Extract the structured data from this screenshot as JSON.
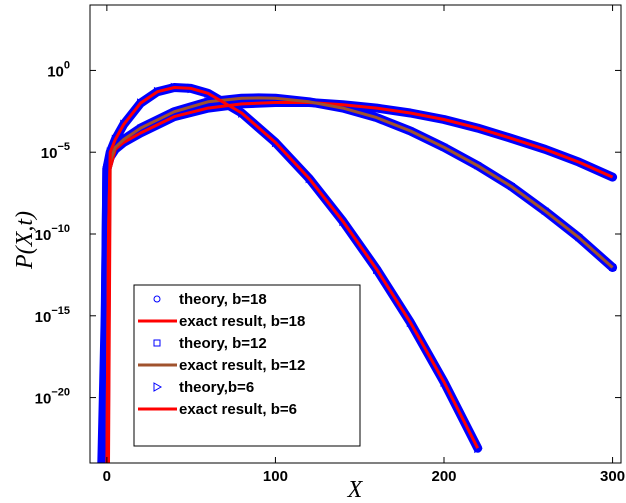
{
  "chart_data": {
    "type": "line",
    "title": "",
    "xlabel": "X",
    "ylabel": "P(X,t)",
    "y_scale": "log",
    "xlim": [
      -10,
      305
    ],
    "ylim": [
      1e-24,
      10000.0
    ],
    "x_ticks": [
      {
        "value": 0,
        "label": "0"
      },
      {
        "value": 100,
        "label": "100"
      },
      {
        "value": 200,
        "label": "200"
      },
      {
        "value": 300,
        "label": "300"
      }
    ],
    "y_ticks": [
      {
        "value": 1,
        "base": "10",
        "exp": "0"
      },
      {
        "value": 1e-05,
        "base": "10",
        "exp": "−5"
      },
      {
        "value": 1e-10,
        "base": "10",
        "exp": "−10"
      },
      {
        "value": 1e-15,
        "base": "10",
        "exp": "−15"
      },
      {
        "value": 1e-20,
        "base": "10",
        "exp": "−20"
      }
    ],
    "grid": false,
    "legend_position": "bottom-left",
    "series": [
      {
        "name": "theory, b=18",
        "kind": "marker",
        "marker": "circle",
        "color": "#0000ff",
        "x": [
          -1,
          0,
          2,
          5,
          10,
          20,
          40,
          60,
          80,
          100,
          120,
          140,
          160,
          180,
          200,
          220,
          240,
          260,
          280,
          300
        ],
        "y": [
          1e-24,
          1e-06,
          5e-06,
          1.5e-05,
          4e-05,
          0.00015,
          0.0015,
          0.005,
          0.009,
          0.011,
          0.011,
          0.008,
          0.005,
          0.0025,
          0.001,
          0.0003,
          7e-05,
          1.5e-05,
          2.5e-06,
          3e-07
        ]
      },
      {
        "name": "exact result, b=18",
        "kind": "line",
        "color": "#ff0000",
        "x": [
          1,
          2,
          5,
          10,
          20,
          40,
          60,
          80,
          100,
          120,
          140,
          160,
          180,
          200,
          220,
          240,
          260,
          280,
          300
        ],
        "y": [
          1e-24,
          1e-06,
          1.5e-05,
          4e-05,
          0.00015,
          0.0015,
          0.005,
          0.009,
          0.011,
          0.011,
          0.008,
          0.005,
          0.0025,
          0.001,
          0.0003,
          7e-05,
          1.5e-05,
          2.5e-06,
          3e-07
        ]
      },
      {
        "name": "theory, b=12",
        "kind": "marker",
        "marker": "square",
        "color": "#0000ff",
        "x": [
          -2,
          -1,
          0,
          2,
          5,
          10,
          20,
          40,
          60,
          80,
          90,
          100,
          120,
          140,
          160,
          180,
          200,
          220,
          240,
          260,
          280,
          300
        ],
        "y": [
          1e-24,
          1e-16,
          1e-06,
          5e-06,
          2e-05,
          6e-05,
          0.0003,
          0.003,
          0.012,
          0.02,
          0.021,
          0.02,
          0.012,
          0.005,
          0.0013,
          0.0002,
          2e-05,
          1.5e-06,
          8e-08,
          2.5e-09,
          6e-11,
          9e-13
        ]
      },
      {
        "name": "exact result, b=12",
        "kind": "line",
        "color": "#a0522d",
        "x": [
          0,
          1,
          2,
          5,
          10,
          20,
          40,
          60,
          80,
          90,
          100,
          120,
          140,
          160,
          180,
          200,
          220,
          240,
          260,
          280,
          300
        ],
        "y": [
          1e-24,
          1e-10,
          3e-06,
          2e-05,
          6e-05,
          0.0003,
          0.003,
          0.012,
          0.02,
          0.021,
          0.02,
          0.012,
          0.005,
          0.0013,
          0.0002,
          2e-05,
          1.5e-06,
          8e-08,
          2.5e-09,
          6e-11,
          9e-13
        ]
      },
      {
        "name": "theory,b=6",
        "kind": "marker",
        "marker": "triangle-right",
        "color": "#0000ff",
        "x": [
          -3,
          -1,
          0,
          2,
          5,
          10,
          20,
          30,
          40,
          50,
          60,
          80,
          100,
          120,
          140,
          160,
          180,
          200,
          220
        ],
        "y": [
          1e-24,
          1e-15,
          1e-06,
          1e-05,
          6e-05,
          0.0005,
          0.01,
          0.05,
          0.09,
          0.08,
          0.04,
          0.0025,
          4e-05,
          2.5e-07,
          6e-10,
          7e-13,
          4e-16,
          9e-20,
          8e-24
        ]
      },
      {
        "name": "exact result, b=6",
        "kind": "line",
        "color": "#ff0000",
        "x": [
          0,
          1,
          2,
          5,
          10,
          20,
          30,
          40,
          50,
          60,
          80,
          100,
          120,
          140,
          160,
          180,
          200,
          220
        ],
        "y": [
          1e-24,
          1e-10,
          1e-05,
          6e-05,
          0.0005,
          0.01,
          0.05,
          0.09,
          0.08,
          0.04,
          0.0025,
          4e-05,
          2.5e-07,
          6e-10,
          7e-13,
          4e-16,
          9e-20,
          8e-24
        ]
      }
    ]
  }
}
